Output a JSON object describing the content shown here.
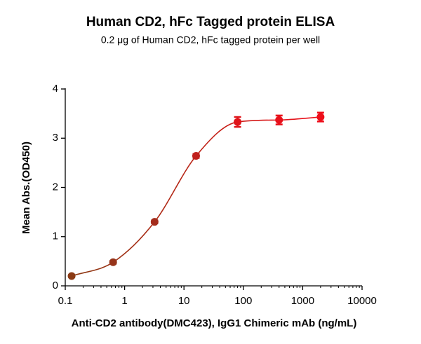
{
  "chart_data": {
    "type": "scatter",
    "title": "Human CD2, hFc Tagged protein ELISA",
    "subtitle": "0.2 μg of Human CD2, hFc tagged protein per well",
    "x_label": "Anti-CD2 antibody(DMC423), IgG1 Chimeric mAb (ng/mL)",
    "y_label": "Mean Abs.(OD450)",
    "x": [
      0.128,
      0.64,
      3.2,
      16,
      80,
      400,
      2000
    ],
    "series": [
      {
        "values": [
          0.2,
          0.48,
          1.3,
          2.64,
          3.33,
          3.37,
          3.43
        ],
        "errors": [
          0.02,
          0.03,
          0.03,
          0.04,
          0.1,
          0.09,
          0.09
        ],
        "colors": [
          "#8b3a14",
          "#96341a",
          "#a42c1c",
          "#c0201c",
          "#e0141a",
          "#e8101a",
          "#ee0e1a"
        ],
        "fit_curve": true
      }
    ],
    "x_scale": "log",
    "xlim": [
      0.1,
      10000
    ],
    "xticks": [
      0.1,
      1,
      10,
      100,
      1000,
      10000
    ],
    "ylim": [
      0,
      4
    ],
    "yticks": [
      0,
      1,
      2,
      3,
      4
    ]
  }
}
